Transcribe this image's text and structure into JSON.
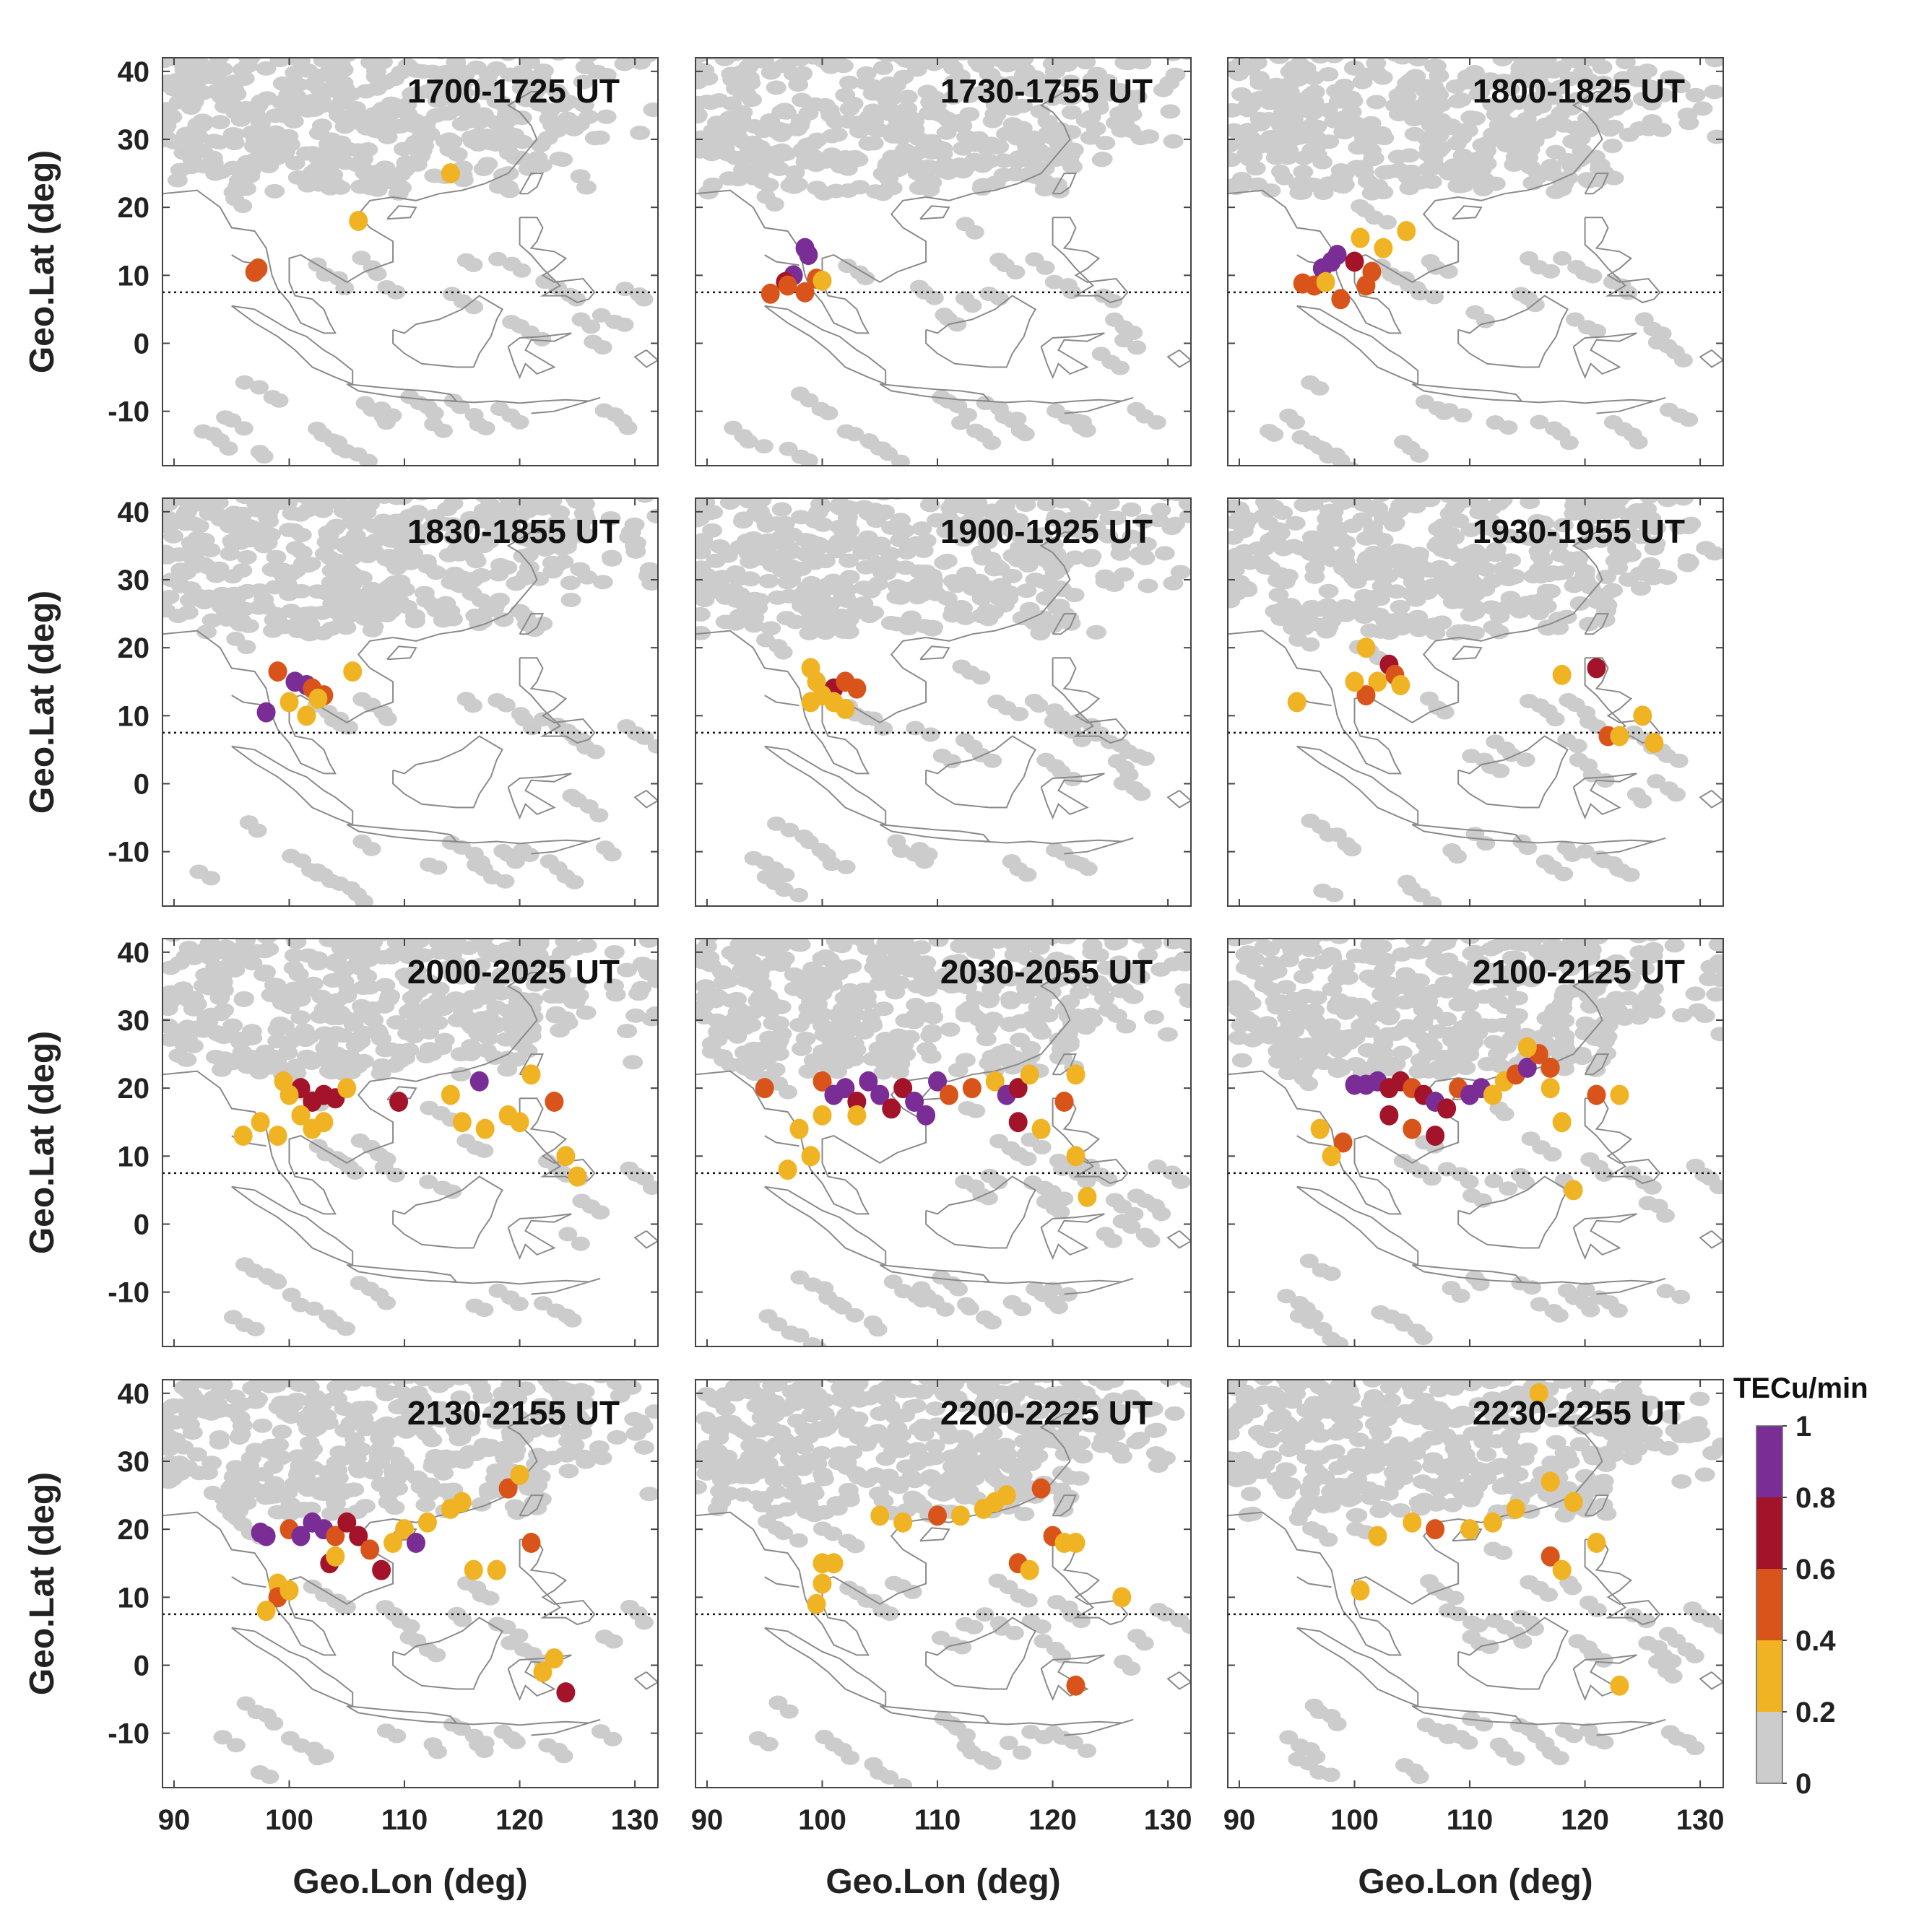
{
  "chart_data": {
    "type": "scatter",
    "grid": "3x4 map panels",
    "xlabel": "Geo.Lon (deg)",
    "ylabel": "Geo.Lat (deg)",
    "xlim": [
      89,
      132
    ],
    "ylim": [
      -18,
      42
    ],
    "xticks": [
      "90",
      "100",
      "110",
      "120",
      "130"
    ],
    "yticks": [
      "40",
      "30",
      "20",
      "10",
      "0",
      "-10"
    ],
    "dip_equator_lat": [
      7.5,
      7.5
    ],
    "colorbar": {
      "title": "TECu/min",
      "ticks": [
        "0",
        "0.2",
        "0.4",
        "0.6",
        "0.8",
        "1"
      ],
      "bins": [
        {
          "range": [
            0,
            0.2
          ],
          "color": "#cccccc"
        },
        {
          "range": [
            0.2,
            0.4
          ],
          "color": "#f0b323"
        },
        {
          "range": [
            0.4,
            0.6
          ],
          "color": "#d9541a"
        },
        {
          "range": [
            0.6,
            0.8
          ],
          "color": "#a3142a"
        },
        {
          "range": [
            0.8,
            1.0
          ],
          "color": "#7b2d96"
        }
      ]
    },
    "panels": [
      {
        "title": "1700-1725 UT",
        "points": [
          [
            114,
            25,
            0.3
          ],
          [
            106,
            18,
            0.3
          ],
          [
            97,
            10.5,
            0.5
          ],
          [
            97.3,
            11,
            0.5
          ]
        ]
      },
      {
        "title": "1730-1755 UT",
        "points": [
          [
            98.5,
            14,
            0.9
          ],
          [
            98.8,
            13,
            0.9
          ],
          [
            97.5,
            10,
            0.9
          ],
          [
            96.8,
            9,
            0.7
          ],
          [
            95.5,
            7.3,
            0.5
          ],
          [
            98.5,
            7.5,
            0.5
          ],
          [
            99.5,
            9.5,
            0.5
          ],
          [
            100,
            9.2,
            0.3
          ],
          [
            97,
            8.5,
            0.5
          ]
        ]
      },
      {
        "title": "1800-1825 UT",
        "points": [
          [
            97.2,
            11,
            0.9
          ],
          [
            98,
            12,
            0.9
          ],
          [
            98.5,
            13,
            0.9
          ],
          [
            95.5,
            8.8,
            0.5
          ],
          [
            96.5,
            8.5,
            0.5
          ],
          [
            98.8,
            6.5,
            0.5
          ],
          [
            101,
            8.5,
            0.5
          ],
          [
            101.5,
            10.5,
            0.5
          ],
          [
            100,
            12,
            0.7
          ],
          [
            100.5,
            15.5,
            0.3
          ],
          [
            102.5,
            14,
            0.3
          ],
          [
            104.5,
            16.5,
            0.3
          ],
          [
            97.5,
            9,
            0.3
          ]
        ]
      },
      {
        "title": "1830-1855 UT",
        "points": [
          [
            100.5,
            15,
            0.9
          ],
          [
            101.5,
            14.5,
            0.9
          ],
          [
            98,
            10.5,
            0.9
          ],
          [
            99,
            16.5,
            0.5
          ],
          [
            102,
            14,
            0.5
          ],
          [
            103,
            13,
            0.5
          ],
          [
            100,
            12,
            0.3
          ],
          [
            101.5,
            10,
            0.3
          ],
          [
            105.5,
            16.5,
            0.3
          ],
          [
            102.5,
            12.5,
            0.3
          ]
        ]
      },
      {
        "title": "1900-1925 UT",
        "points": [
          [
            101,
            14,
            0.7
          ],
          [
            102,
            15,
            0.5
          ],
          [
            103,
            14,
            0.5
          ],
          [
            99,
            17,
            0.3
          ],
          [
            99.5,
            15,
            0.3
          ],
          [
            101,
            12,
            0.3
          ],
          [
            102,
            11,
            0.3
          ],
          [
            100,
            13,
            0.3
          ],
          [
            99,
            12,
            0.3
          ]
        ]
      },
      {
        "title": "1930-1955 UT",
        "points": [
          [
            103,
            17.5,
            0.7
          ],
          [
            121,
            17,
            0.7
          ],
          [
            102,
            15,
            0.3
          ],
          [
            103.5,
            16,
            0.5
          ],
          [
            101,
            13,
            0.5
          ],
          [
            100,
            15,
            0.3
          ],
          [
            104,
            14.5,
            0.3
          ],
          [
            101,
            20,
            0.3
          ],
          [
            95,
            12,
            0.3
          ],
          [
            118,
            16,
            0.3
          ],
          [
            122,
            7,
            0.5
          ],
          [
            123,
            7,
            0.3
          ],
          [
            125,
            10,
            0.3
          ],
          [
            126,
            6,
            0.3
          ]
        ]
      },
      {
        "title": "2000-2025 UT",
        "points": [
          [
            101,
            20,
            0.7
          ],
          [
            102,
            18,
            0.7
          ],
          [
            103,
            19,
            0.7
          ],
          [
            104,
            18.5,
            0.7
          ],
          [
            109.5,
            18,
            0.7
          ],
          [
            116.5,
            21,
            0.9
          ],
          [
            100,
            19,
            0.3
          ],
          [
            99.5,
            21,
            0.3
          ],
          [
            101,
            16,
            0.3
          ],
          [
            102,
            14,
            0.3
          ],
          [
            99,
            13,
            0.3
          ],
          [
            96,
            13,
            0.3
          ],
          [
            97.5,
            15,
            0.3
          ],
          [
            105,
            20,
            0.3
          ],
          [
            103,
            15,
            0.3
          ],
          [
            114,
            19,
            0.3
          ],
          [
            115,
            15,
            0.3
          ],
          [
            117,
            14,
            0.3
          ],
          [
            119,
            16,
            0.3
          ],
          [
            121,
            22,
            0.3
          ],
          [
            123,
            18,
            0.5
          ],
          [
            124,
            10,
            0.3
          ],
          [
            125,
            7,
            0.3
          ],
          [
            120,
            15,
            0.3
          ]
        ]
      },
      {
        "title": "2030-2055 UT",
        "points": [
          [
            100,
            21,
            0.5
          ],
          [
            101,
            19,
            0.9
          ],
          [
            102,
            20,
            0.9
          ],
          [
            103,
            18,
            0.7
          ],
          [
            104,
            21,
            0.9
          ],
          [
            105,
            19,
            0.9
          ],
          [
            106,
            17,
            0.7
          ],
          [
            107,
            20,
            0.7
          ],
          [
            108,
            18,
            0.9
          ],
          [
            109,
            16,
            0.9
          ],
          [
            110,
            21,
            0.9
          ],
          [
            111,
            19,
            0.5
          ],
          [
            113,
            20,
            0.5
          ],
          [
            115,
            21,
            0.3
          ],
          [
            116,
            19,
            0.9
          ],
          [
            117,
            20,
            0.7
          ],
          [
            117,
            15,
            0.7
          ],
          [
            118,
            22,
            0.3
          ],
          [
            100,
            16,
            0.3
          ],
          [
            98,
            14,
            0.3
          ],
          [
            99,
            10,
            0.3
          ],
          [
            97,
            8,
            0.3
          ],
          [
            95,
            20,
            0.5
          ],
          [
            103,
            16,
            0.3
          ],
          [
            121,
            18,
            0.5
          ],
          [
            122,
            10,
            0.3
          ],
          [
            123,
            4,
            0.3
          ],
          [
            119,
            14,
            0.3
          ],
          [
            122,
            22,
            0.3
          ]
        ]
      },
      {
        "title": "2100-2125 UT",
        "points": [
          [
            100,
            20.5,
            0.9
          ],
          [
            101,
            20.5,
            0.9
          ],
          [
            102,
            21,
            0.9
          ],
          [
            103,
            20,
            0.7
          ],
          [
            104,
            21,
            0.7
          ],
          [
            105,
            20,
            0.5
          ],
          [
            106,
            19,
            0.7
          ],
          [
            107,
            18,
            0.9
          ],
          [
            108,
            17,
            0.7
          ],
          [
            109,
            20,
            0.5
          ],
          [
            110,
            19,
            0.9
          ],
          [
            111,
            20,
            0.9
          ],
          [
            112,
            19,
            0.3
          ],
          [
            113,
            21,
            0.3
          ],
          [
            114,
            22,
            0.5
          ],
          [
            115,
            23,
            0.9
          ],
          [
            116,
            25,
            0.5
          ],
          [
            117,
            23,
            0.5
          ],
          [
            115,
            26,
            0.3
          ],
          [
            103,
            16,
            0.7
          ],
          [
            105,
            14,
            0.5
          ],
          [
            107,
            13,
            0.7
          ],
          [
            99,
            12,
            0.5
          ],
          [
            98,
            10,
            0.3
          ],
          [
            97,
            14,
            0.3
          ],
          [
            117,
            20,
            0.3
          ],
          [
            118,
            15,
            0.3
          ],
          [
            119,
            5,
            0.3
          ],
          [
            121,
            19,
            0.5
          ],
          [
            123,
            19,
            0.3
          ]
        ]
      },
      {
        "title": "2130-2155 UT",
        "points": [
          [
            97.5,
            19.5,
            0.9
          ],
          [
            98,
            19,
            0.9
          ],
          [
            100,
            20,
            0.5
          ],
          [
            101,
            19,
            0.9
          ],
          [
            102,
            21,
            0.9
          ],
          [
            103,
            20,
            0.9
          ],
          [
            104,
            19,
            0.5
          ],
          [
            105,
            21,
            0.7
          ],
          [
            106,
            19,
            0.7
          ],
          [
            107,
            17,
            0.5
          ],
          [
            108,
            14,
            0.7
          ],
          [
            109,
            18,
            0.3
          ],
          [
            110,
            20,
            0.3
          ],
          [
            111,
            18,
            0.9
          ],
          [
            112,
            21,
            0.3
          ],
          [
            114,
            23,
            0.3
          ],
          [
            115,
            24,
            0.3
          ],
          [
            119,
            26,
            0.5
          ],
          [
            120,
            28,
            0.3
          ],
          [
            103.5,
            15,
            0.7
          ],
          [
            104,
            16,
            0.3
          ],
          [
            99,
            12,
            0.3
          ],
          [
            99,
            10,
            0.5
          ],
          [
            98,
            8,
            0.3
          ],
          [
            100,
            11,
            0.3
          ],
          [
            118,
            14,
            0.3
          ],
          [
            116,
            14,
            0.3
          ],
          [
            121,
            18,
            0.5
          ],
          [
            124,
            -4,
            0.7
          ],
          [
            123,
            1,
            0.3
          ],
          [
            122,
            -1,
            0.3
          ]
        ]
      },
      {
        "title": "2200-2225 UT",
        "points": [
          [
            105,
            22,
            0.3
          ],
          [
            107,
            21,
            0.3
          ],
          [
            110,
            22,
            0.5
          ],
          [
            112,
            22,
            0.3
          ],
          [
            114,
            23,
            0.3
          ],
          [
            115,
            24,
            0.3
          ],
          [
            116,
            25,
            0.3
          ],
          [
            119,
            26,
            0.5
          ],
          [
            117,
            15,
            0.5
          ],
          [
            118,
            14,
            0.3
          ],
          [
            120,
            19,
            0.5
          ],
          [
            121,
            18,
            0.3
          ],
          [
            122,
            18,
            0.3
          ],
          [
            126,
            10,
            0.3
          ],
          [
            122,
            -3,
            0.5
          ],
          [
            100,
            15,
            0.3
          ],
          [
            100,
            12,
            0.3
          ],
          [
            99.5,
            9,
            0.3
          ],
          [
            101,
            15,
            0.3
          ]
        ]
      },
      {
        "title": "2230-2255 UT",
        "points": [
          [
            102,
            19,
            0.3
          ],
          [
            105,
            21,
            0.3
          ],
          [
            107,
            20,
            0.5
          ],
          [
            110,
            20,
            0.3
          ],
          [
            112,
            21,
            0.3
          ],
          [
            114,
            23,
            0.3
          ],
          [
            116,
            40,
            0.3
          ],
          [
            117,
            27,
            0.3
          ],
          [
            119,
            24,
            0.3
          ],
          [
            117,
            16,
            0.5
          ],
          [
            118,
            14,
            0.3
          ],
          [
            121,
            18,
            0.3
          ],
          [
            123,
            -3,
            0.3
          ],
          [
            100.5,
            11,
            0.3
          ]
        ]
      }
    ]
  }
}
